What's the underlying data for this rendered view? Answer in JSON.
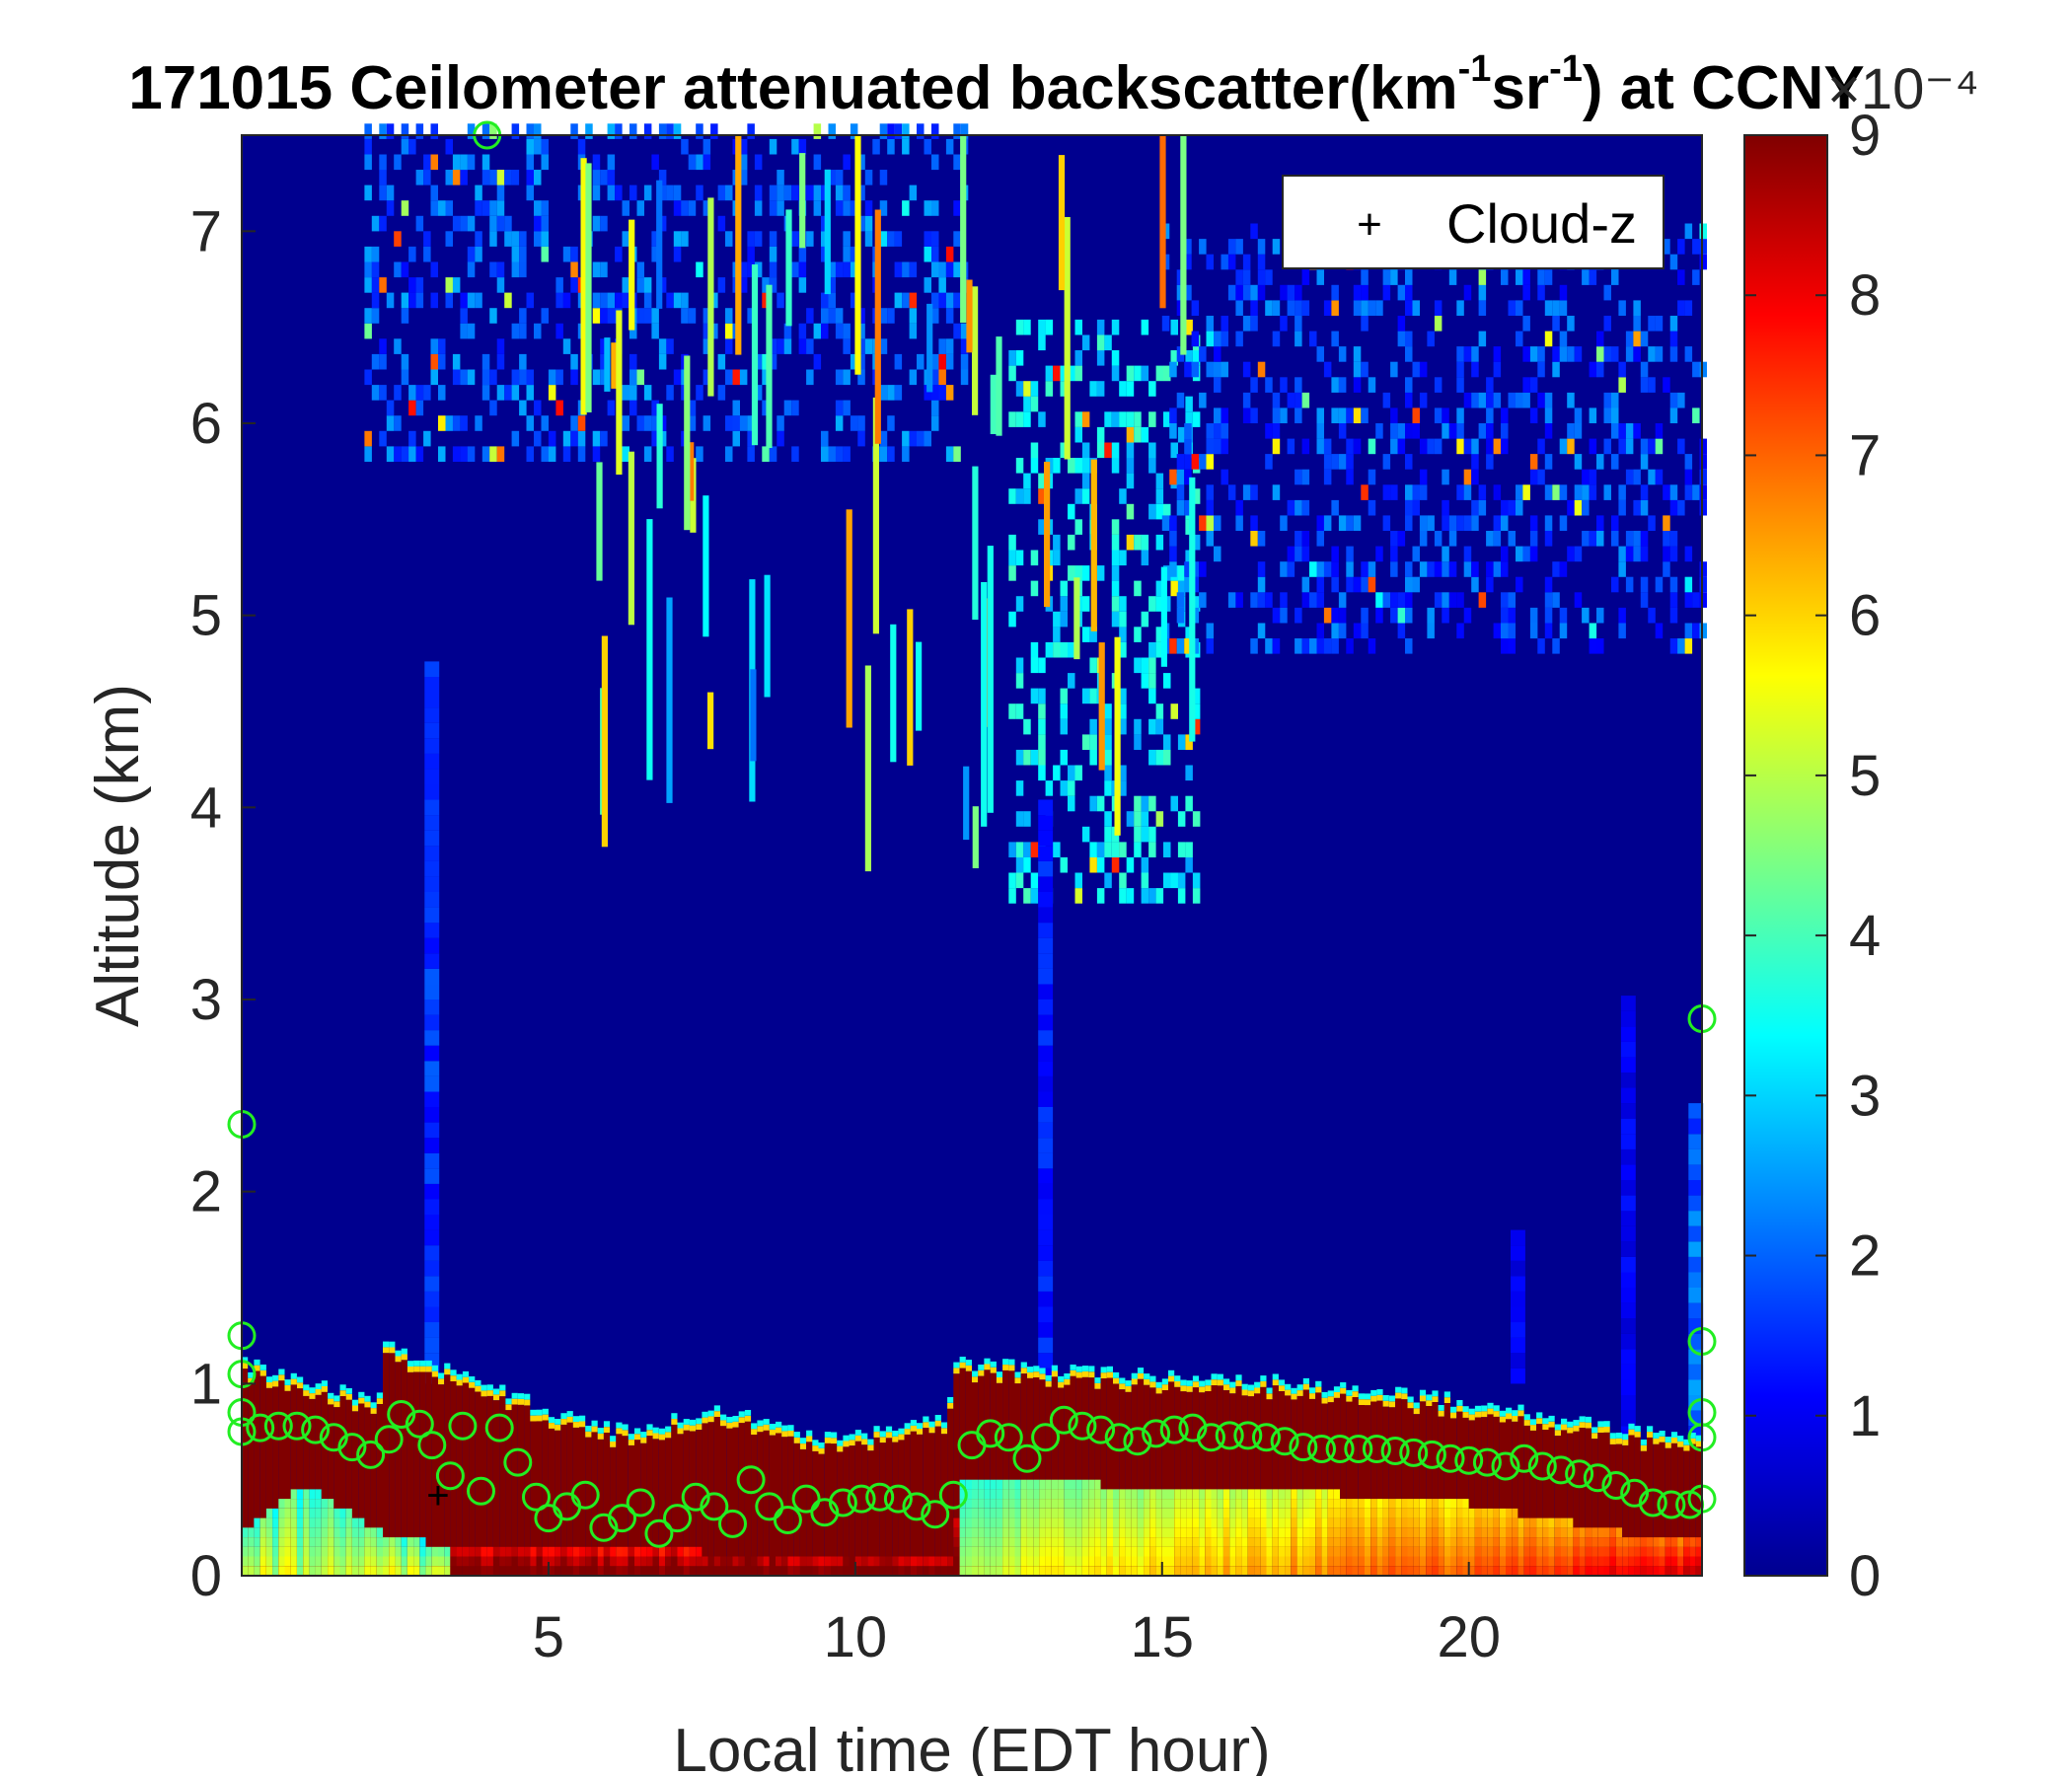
{
  "chart_data": {
    "type": "heatmap",
    "title": "171015 Ceilometer attenuated backscatter(km⁻¹sr⁻¹) at CCNY",
    "title_parts": [
      "171015 Ceilometer attenuated backscatter(km",
      "-1",
      "sr",
      "-1",
      ") at CCNY"
    ],
    "xlabel": "Local time (EDT hour)",
    "ylabel": "Altitude (km)",
    "xlim": [
      0,
      23.8
    ],
    "ylim": [
      0,
      7.5
    ],
    "xticks": [
      5,
      10,
      15,
      20
    ],
    "yticks": [
      0,
      1,
      2,
      3,
      4,
      5,
      6,
      7
    ],
    "colorbar": {
      "colormap": "jet",
      "range": [
        0,
        9
      ],
      "ticks": [
        0,
        1,
        2,
        3,
        4,
        5,
        6,
        7,
        8,
        9
      ],
      "exponent_label": "×10⁻⁴"
    },
    "legend": {
      "position": "top-right",
      "entries": [
        "Cloud-z"
      ],
      "marker": "+"
    },
    "overlays": {
      "pbl_height_markers": {
        "marker": "circle",
        "color": "#22ee22"
      },
      "cloud_z": [
        [
          3.2,
          0.42
        ]
      ]
    },
    "layers": {
      "aerosol_layer_top": [
        [
          0,
          1.05
        ],
        [
          2.3,
          0.85
        ],
        [
          2.3,
          1.15
        ],
        [
          3.4,
          1.0
        ],
        [
          4.2,
          0.9
        ],
        [
          6.0,
          0.7
        ],
        [
          8.0,
          0.8
        ],
        [
          9.5,
          0.65
        ],
        [
          11.5,
          0.75
        ],
        [
          11.6,
          1.05
        ],
        [
          14.0,
          1.0
        ],
        [
          17.0,
          0.95
        ],
        [
          20.0,
          0.85
        ],
        [
          22.5,
          0.7
        ],
        [
          23.8,
          0.65
        ]
      ],
      "surface_layer_top": [
        [
          0,
          0.2
        ],
        [
          1.0,
          0.45
        ],
        [
          2.3,
          0.2
        ],
        [
          3.4,
          0.12
        ],
        [
          11.6,
          0.08
        ],
        [
          11.7,
          0.45
        ],
        [
          14.0,
          0.45
        ],
        [
          17.0,
          0.42
        ],
        [
          20.0,
          0.35
        ],
        [
          22.5,
          0.2
        ],
        [
          23.8,
          0.15
        ]
      ]
    },
    "pbl_height_km": [
      [
        0,
        0.75
      ],
      [
        0.3,
        0.77
      ],
      [
        0.6,
        0.78
      ],
      [
        0.9,
        0.78
      ],
      [
        1.2,
        0.76
      ],
      [
        1.5,
        0.72
      ],
      [
        1.8,
        0.67
      ],
      [
        2.1,
        0.63
      ],
      [
        2.4,
        0.71
      ],
      [
        2.6,
        0.84
      ],
      [
        2.9,
        0.79
      ],
      [
        3.1,
        0.68
      ],
      [
        3.4,
        0.52
      ],
      [
        3.6,
        0.78
      ],
      [
        3.9,
        0.44
      ],
      [
        4.2,
        0.77
      ],
      [
        4.5,
        0.59
      ],
      [
        4.8,
        0.41
      ],
      [
        5.0,
        0.3
      ],
      [
        5.3,
        0.36
      ],
      [
        5.6,
        0.42
      ],
      [
        5.9,
        0.25
      ],
      [
        6.2,
        0.3
      ],
      [
        6.5,
        0.38
      ],
      [
        6.8,
        0.22
      ],
      [
        7.1,
        0.3
      ],
      [
        7.4,
        0.41
      ],
      [
        7.7,
        0.36
      ],
      [
        8.0,
        0.27
      ],
      [
        8.3,
        0.5
      ],
      [
        8.6,
        0.36
      ],
      [
        8.9,
        0.29
      ],
      [
        9.2,
        0.4
      ],
      [
        9.5,
        0.33
      ],
      [
        9.8,
        0.38
      ],
      [
        10.1,
        0.4
      ],
      [
        10.4,
        0.41
      ],
      [
        10.7,
        0.4
      ],
      [
        11.0,
        0.36
      ],
      [
        11.3,
        0.32
      ],
      [
        11.6,
        0.42
      ],
      [
        11.9,
        0.68
      ],
      [
        12.2,
        0.74
      ],
      [
        12.5,
        0.72
      ],
      [
        12.8,
        0.61
      ],
      [
        13.1,
        0.72
      ],
      [
        13.4,
        0.81
      ],
      [
        13.7,
        0.78
      ],
      [
        14.0,
        0.76
      ],
      [
        14.3,
        0.72
      ],
      [
        14.6,
        0.7
      ],
      [
        14.9,
        0.74
      ],
      [
        15.2,
        0.76
      ],
      [
        15.5,
        0.77
      ],
      [
        15.8,
        0.72
      ],
      [
        16.1,
        0.73
      ],
      [
        16.4,
        0.73
      ],
      [
        16.7,
        0.72
      ],
      [
        17.0,
        0.7
      ],
      [
        17.3,
        0.67
      ],
      [
        17.6,
        0.66
      ],
      [
        17.9,
        0.66
      ],
      [
        18.2,
        0.66
      ],
      [
        18.5,
        0.66
      ],
      [
        18.8,
        0.65
      ],
      [
        19.1,
        0.64
      ],
      [
        19.4,
        0.63
      ],
      [
        19.7,
        0.61
      ],
      [
        20.0,
        0.6
      ],
      [
        20.3,
        0.59
      ],
      [
        20.6,
        0.57
      ],
      [
        20.9,
        0.61
      ],
      [
        21.2,
        0.57
      ],
      [
        21.5,
        0.55
      ],
      [
        21.8,
        0.53
      ],
      [
        22.1,
        0.51
      ],
      [
        22.4,
        0.47
      ],
      [
        22.7,
        0.43
      ],
      [
        23.0,
        0.38
      ],
      [
        23.3,
        0.37
      ],
      [
        23.6,
        0.37
      ],
      [
        23.8,
        0.72
      ],
      [
        0,
        0.85
      ],
      [
        0,
        1.05
      ],
      [
        0,
        1.25
      ],
      [
        0,
        2.35
      ],
      [
        23.8,
        1.22
      ],
      [
        23.8,
        0.85
      ],
      [
        23.8,
        2.9
      ],
      [
        23.8,
        0.4
      ],
      [
        4.0,
        7.5
      ]
    ],
    "high_cloud_bands": [
      {
        "x": [
          2.0,
          11.8
        ],
        "y": [
          5.8,
          7.5
        ],
        "level": 1.2
      },
      {
        "x": [
          12.5,
          15.5
        ],
        "y": [
          3.5,
          6.5
        ],
        "level": 2.5
      },
      {
        "x": [
          15.0,
          23.8
        ],
        "y": [
          4.8,
          7.0
        ],
        "level": 1.0
      }
    ],
    "plumes": [
      {
        "x": 3.1,
        "y": [
          1.0,
          4.7
        ],
        "level": 1.5
      },
      {
        "x": 13.1,
        "y": [
          1.0,
          4.0
        ],
        "level": 1.3
      },
      {
        "x": 20.8,
        "y": [
          1.0,
          1.8
        ],
        "level": 1.0
      },
      {
        "x": 22.6,
        "y": [
          0.7,
          3.0
        ],
        "level": 1.0
      },
      {
        "x": 23.7,
        "y": [
          0.7,
          2.4
        ],
        "level": 2.0
      }
    ]
  }
}
